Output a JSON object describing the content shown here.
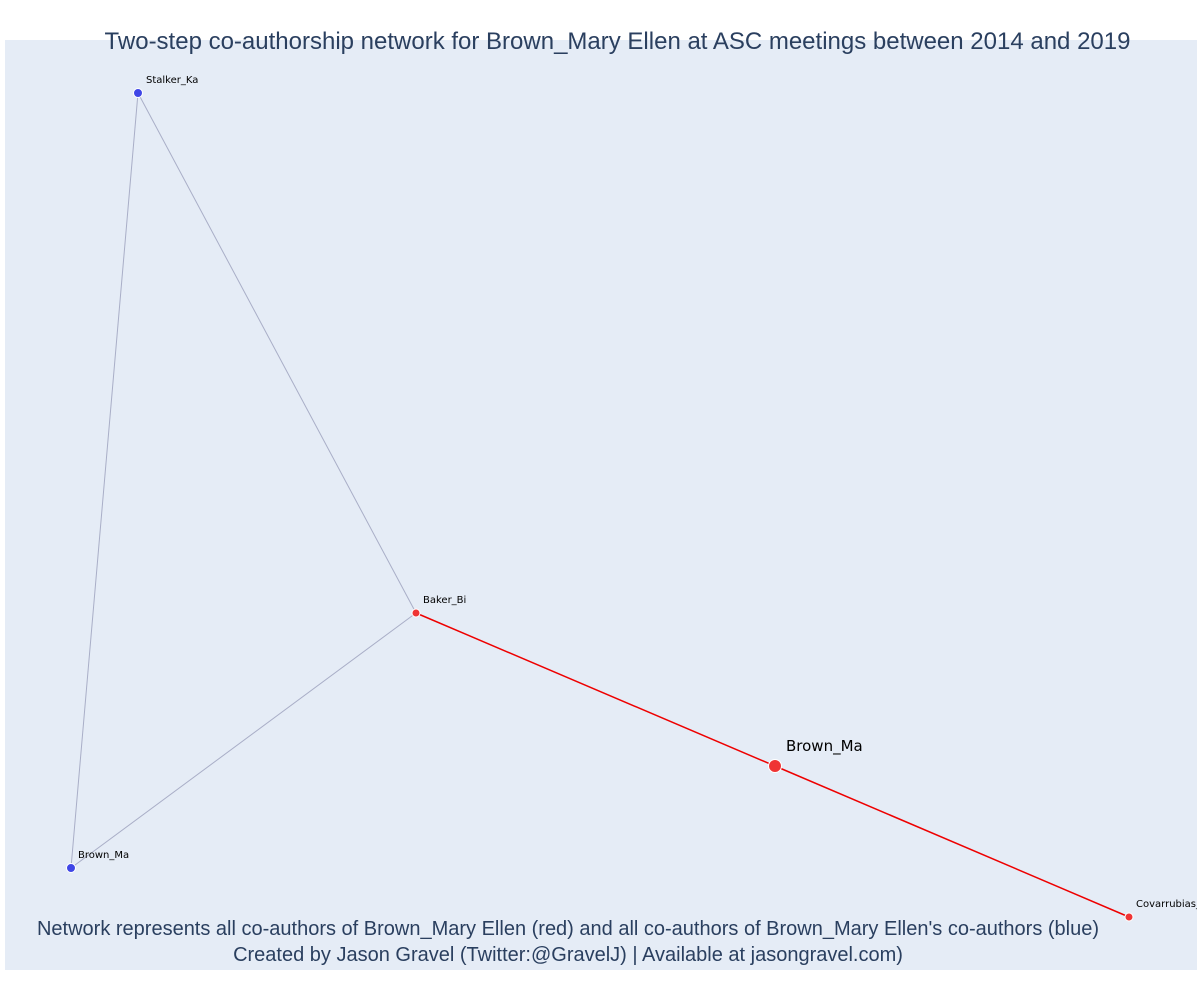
{
  "title": "Two-step co-authorship network for Brown_Mary Ellen at ASC meetings between 2014 and 2019",
  "caption": {
    "line1": "Network represents all co-authors of Brown_Mary Ellen (red) and all co-authors of Brown_Mary Ellen's co-authors (blue)",
    "line2": "Created by Jason Gravel (Twitter:@GravelJ) | Available at jasongravel.com)"
  },
  "colors": {
    "background": "#e5ecf6",
    "ego": "#ef3434",
    "first_step": "#ef3434",
    "second_step": "#3f46e6",
    "ego_edge": "#ee0000",
    "other_edge": "#a9aec7",
    "title": "#2a3f5f"
  },
  "nodes": [
    {
      "id": "stalker",
      "label": "Stalker_Ka",
      "group": "second_step"
    },
    {
      "id": "baker",
      "label": "Baker_Bi",
      "group": "first_step"
    },
    {
      "id": "ego",
      "label": "Brown_Ma",
      "group": "ego"
    },
    {
      "id": "brown2",
      "label": "Brown_Ma",
      "group": "second_step"
    },
    {
      "id": "covarrubias",
      "label": "Covarrubias_",
      "group": "first_step"
    }
  ],
  "edges": [
    {
      "from": "stalker",
      "to": "baker",
      "type": "other"
    },
    {
      "from": "stalker",
      "to": "brown2",
      "type": "other"
    },
    {
      "from": "brown2",
      "to": "baker",
      "type": "other"
    },
    {
      "from": "baker",
      "to": "ego",
      "type": "ego"
    },
    {
      "from": "ego",
      "to": "covarrubias",
      "type": "ego"
    }
  ]
}
